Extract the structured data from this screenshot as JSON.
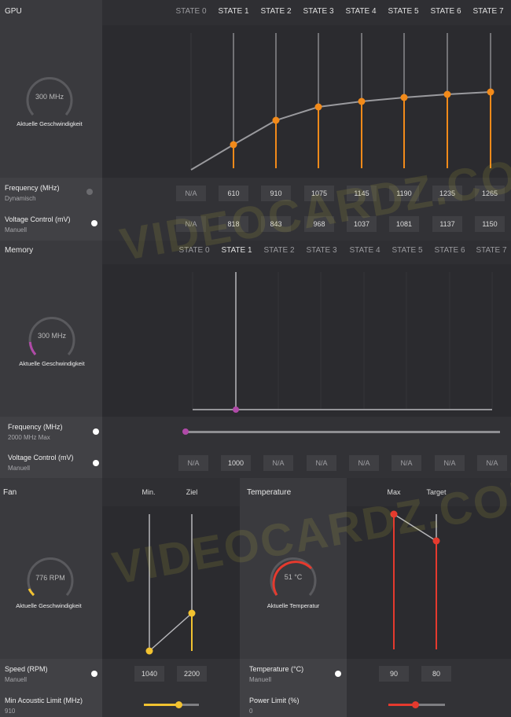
{
  "gpu": {
    "title": "GPU",
    "states": [
      "STATE 0",
      "STATE 1",
      "STATE 2",
      "STATE 3",
      "STATE 4",
      "STATE 5",
      "STATE 6",
      "STATE 7"
    ],
    "gauge_value": "300 MHz",
    "gauge_caption": "Aktuelle Geschwindigkeit",
    "frequency_label": "Frequency (MHz)",
    "frequency_mode": "Dynamisch",
    "frequency_values": [
      "N/A",
      "610",
      "910",
      "1075",
      "1145",
      "1190",
      "1235",
      "1265"
    ],
    "voltage_label": "Voltage Control (mV)",
    "voltage_mode": "Manuell",
    "voltage_values": [
      "N/A",
      "818",
      "843",
      "968",
      "1037",
      "1081",
      "1137",
      "1150"
    ]
  },
  "memory": {
    "title": "Memory",
    "states": [
      "STATE 0",
      "STATE 1",
      "STATE 2",
      "STATE 3",
      "STATE 4",
      "STATE 5",
      "STATE 6",
      "STATE 7"
    ],
    "gauge_value": "300 MHz",
    "gauge_caption": "Aktuelle Geschwindigkeit",
    "frequency_label": "Frequency (MHz)",
    "frequency_mode": "2000 MHz Max",
    "voltage_label": "Voltage Control (mV)",
    "voltage_mode": "Manuell",
    "voltage_values": [
      "N/A",
      "1000",
      "N/A",
      "N/A",
      "N/A",
      "N/A",
      "N/A",
      "N/A"
    ]
  },
  "fan": {
    "title": "Fan",
    "col_min": "Min.",
    "col_target": "Ziel",
    "gauge_value": "776 RPM",
    "gauge_caption": "Aktuelle Geschwindigkeit",
    "speed_label": "Speed (RPM)",
    "speed_mode": "Manuell",
    "speed_min": "1040",
    "speed_target": "2200",
    "acoustic_label": "Min Acoustic Limit (MHz)",
    "acoustic_value": "910"
  },
  "temperature": {
    "title": "Temperature",
    "col_max": "Max",
    "col_target": "Target",
    "gauge_value": "51 °C",
    "gauge_caption": "Aktuelle Temperatur",
    "temp_label": "Temperature (°C)",
    "temp_mode": "Manuell",
    "temp_max": "90",
    "temp_target": "80",
    "power_label": "Power Limit (%)",
    "power_value": "0"
  },
  "watermark": "VIDEOCARDZ.COM",
  "colors": {
    "gpu_accent": "#f28a1a",
    "memory_accent": "#b04aa8",
    "fan_accent": "#f2c230",
    "temp_accent": "#e53a2e"
  }
}
